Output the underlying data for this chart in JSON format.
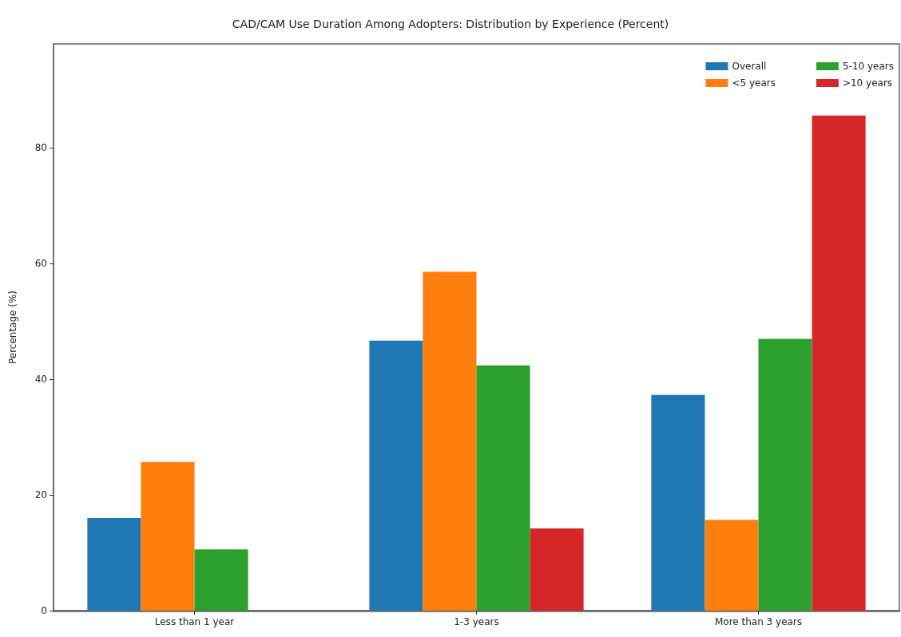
{
  "chart_data": {
    "type": "bar",
    "title": "CAD/CAM Use Duration Among Adopters: Distribution by Experience (Percent)",
    "ylabel": "Percentage (%)",
    "categories": [
      "Less than 1 year",
      "1-3 years",
      "More than 3 years"
    ],
    "series": [
      {
        "name": "Overall",
        "color": "#1f77b4",
        "values": [
          16.0,
          46.7,
          37.3
        ]
      },
      {
        "name": "<5 years",
        "color": "#ff7f0e",
        "values": [
          25.7,
          58.6,
          15.7
        ]
      },
      {
        "name": "5-10 years",
        "color": "#2ca02c",
        "values": [
          10.6,
          42.4,
          47.0
        ]
      },
      {
        "name": ">10 years",
        "color": "#d62728",
        "values": [
          0,
          14.2,
          85.6
        ]
      }
    ],
    "ylim": [
      0,
      98
    ],
    "yticks": [
      0,
      20,
      40,
      60,
      80
    ],
    "grid": false,
    "legend": "top right"
  }
}
